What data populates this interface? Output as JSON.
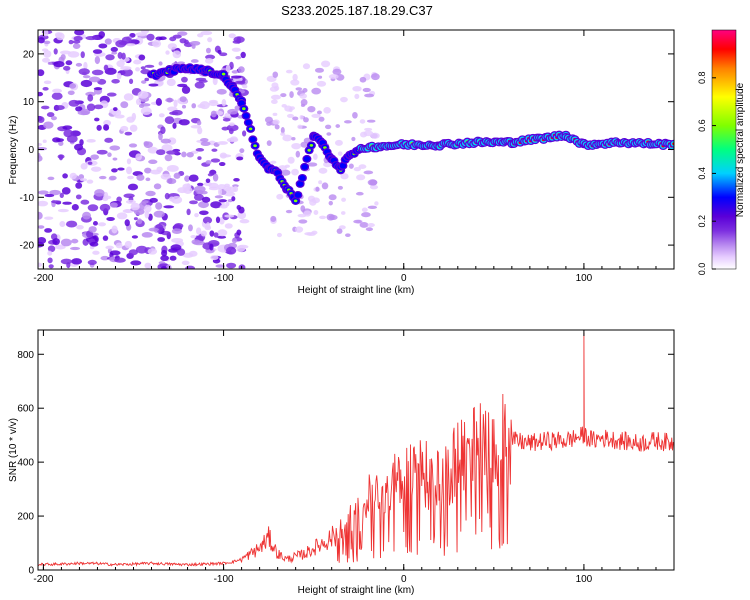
{
  "title": "S233.2025.187.18.29.C37",
  "chart_data": [
    {
      "type": "heatmap",
      "xlabel": "Height of straight line (km)",
      "ylabel": "Frequency (Hz)",
      "xlim": [
        -203,
        150
      ],
      "ylim": [
        -25,
        25
      ],
      "xticks": [
        -200,
        -100,
        0,
        100
      ],
      "yticks": [
        -20,
        -10,
        0,
        10,
        20
      ],
      "colorbar": {
        "label": "Normalized spectral amplitude",
        "range": [
          0,
          1
        ],
        "ticks": [
          "0.0",
          "0.2",
          "0.4",
          "0.6",
          "0.8"
        ],
        "colormap": [
          "#ffffff",
          "#e6ccff",
          "#b98af0",
          "#7d2fe0",
          "#5a00d8",
          "#0000ff",
          "#00d0ff",
          "#00ff80",
          "#80ff00",
          "#ffff00",
          "#ff8000",
          "#ff0000",
          "#ff0080"
        ]
      },
      "ridge": [
        {
          "x": -140,
          "y": 15.5
        },
        {
          "x": -130,
          "y": 16.5
        },
        {
          "x": -120,
          "y": 17
        },
        {
          "x": -110,
          "y": 16.5
        },
        {
          "x": -100,
          "y": 15.5
        },
        {
          "x": -95,
          "y": 13
        },
        {
          "x": -90,
          "y": 10
        },
        {
          "x": -80,
          "y": -2
        },
        {
          "x": -75,
          "y": -4
        },
        {
          "x": -70,
          "y": -5
        },
        {
          "x": -65,
          "y": -8
        },
        {
          "x": -60,
          "y": -11
        },
        {
          "x": -50,
          "y": 3
        },
        {
          "x": -45,
          "y": 1
        },
        {
          "x": -40,
          "y": -2
        },
        {
          "x": -35,
          "y": -4
        },
        {
          "x": -30,
          "y": -1
        },
        {
          "x": -20,
          "y": 0.5
        },
        {
          "x": 0,
          "y": 1
        },
        {
          "x": 20,
          "y": 1
        },
        {
          "x": 40,
          "y": 1.5
        },
        {
          "x": 60,
          "y": 1.5
        },
        {
          "x": 80,
          "y": 2.5
        },
        {
          "x": 90,
          "y": 3
        },
        {
          "x": 100,
          "y": 1
        },
        {
          "x": 120,
          "y": 1.5
        },
        {
          "x": 150,
          "y": 1
        }
      ]
    },
    {
      "type": "line",
      "xlabel": "Height of straight line (km)",
      "ylabel": "SNR (10 * v/v)",
      "xlim": [
        -203,
        150
      ],
      "ylim": [
        0,
        890
      ],
      "xticks": [
        -200,
        -100,
        0,
        100
      ],
      "yticks": [
        0,
        200,
        400,
        600,
        800
      ],
      "color": "#ee3333",
      "series": [
        {
          "x": [
            -203,
            -190,
            -180,
            -170,
            -160,
            -150,
            -140,
            -130,
            -120,
            -110,
            -100,
            -95,
            -90,
            -85,
            -80,
            -75,
            -70,
            -65,
            -60,
            -55,
            -50,
            -45,
            -40,
            -35,
            -30,
            -25,
            -20,
            -15,
            -10,
            -5,
            0,
            5,
            10,
            15,
            20,
            25,
            30,
            35,
            40,
            45,
            50,
            55,
            60,
            70,
            80,
            90,
            95,
            100,
            105,
            110,
            120,
            130,
            140,
            150
          ],
          "values": [
            20,
            22,
            25,
            24,
            20,
            22,
            25,
            22,
            20,
            22,
            25,
            30,
            40,
            60,
            80,
            120,
            60,
            40,
            50,
            60,
            80,
            100,
            120,
            150,
            180,
            200,
            260,
            280,
            300,
            320,
            340,
            380,
            360,
            340,
            320,
            360,
            420,
            440,
            460,
            470,
            480,
            490,
            480,
            470,
            480,
            480,
            490,
            500,
            480,
            490,
            480,
            470,
            480,
            470
          ]
        }
      ],
      "spikes": [
        {
          "x": 100,
          "y": 880
        }
      ]
    }
  ]
}
